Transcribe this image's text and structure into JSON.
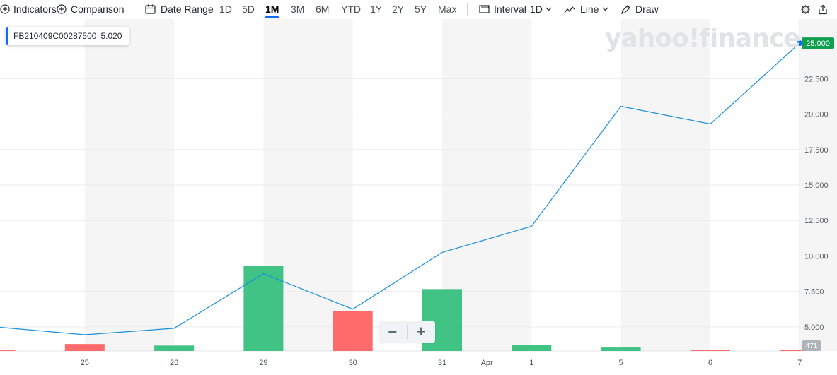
{
  "toolbar": {
    "indicators_label": "Indicators",
    "comparison_label": "Comparison",
    "date_range_label": "Date Range",
    "ranges": [
      "1D",
      "5D",
      "1M",
      "3M",
      "6M",
      "YTD",
      "1Y",
      "2Y",
      "5Y",
      "Max"
    ],
    "active_range": "1M",
    "interval_label": "Interval",
    "interval_value": "1D",
    "chart_type_label": "Line",
    "draw_label": "Draw"
  },
  "quote": {
    "symbol": "FB210409C00287500",
    "value": "5.020"
  },
  "watermark": "yahoo!finance",
  "zoom": {
    "minus": "−",
    "plus": "+"
  },
  "chart_data": {
    "type": "line",
    "categories": [
      "",
      "25",
      "26",
      "29",
      "30",
      "31",
      "1",
      "5",
      "6",
      "7"
    ],
    "month_label": {
      "text": "Apr",
      "between": [
        "31",
        "1"
      ]
    },
    "series": [
      {
        "values": [
          5.0,
          4.45,
          4.9,
          8.75,
          6.25,
          10.25,
          12.1,
          20.55,
          19.3,
          25.0
        ],
        "color": "#1a8fdb"
      }
    ],
    "last_value_label": "25.000",
    "last_value_color": "#10a050",
    "y_ticks": [
      "5.000",
      "7.500",
      "10.000",
      "12.500",
      "15.000",
      "17.500",
      "20.000",
      "22.500"
    ],
    "ylim": [
      3.9,
      26.3
    ],
    "volume": {
      "values": [
        15,
        90,
        70,
        1100,
        520,
        800,
        80,
        45,
        2,
        2
      ],
      "up": [
        false,
        false,
        true,
        true,
        false,
        true,
        true,
        true,
        false,
        false
      ],
      "max": 1150,
      "label": "471",
      "up_color": "#42c386",
      "down_color": "#ff6b6b"
    },
    "grid": true
  }
}
